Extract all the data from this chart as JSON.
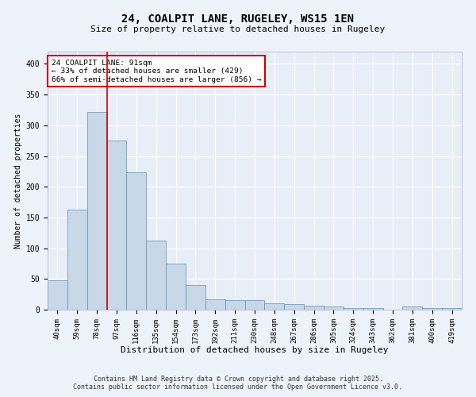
{
  "title": "24, COALPIT LANE, RUGELEY, WS15 1EN",
  "subtitle": "Size of property relative to detached houses in Rugeley",
  "xlabel": "Distribution of detached houses by size in Rugeley",
  "ylabel": "Number of detached properties",
  "footer_line1": "Contains HM Land Registry data © Crown copyright and database right 2025.",
  "footer_line2": "Contains public sector information licensed under the Open Government Licence v3.0.",
  "annotation_line1": "24 COALPIT LANE: 91sqm",
  "annotation_line2": "← 33% of detached houses are smaller (429)",
  "annotation_line3": "66% of semi-detached houses are larger (856) →",
  "bar_labels": [
    "40sqm",
    "59sqm",
    "78sqm",
    "97sqm",
    "116sqm",
    "135sqm",
    "154sqm",
    "173sqm",
    "192sqm",
    "211sqm",
    "230sqm",
    "248sqm",
    "267sqm",
    "286sqm",
    "305sqm",
    "324sqm",
    "343sqm",
    "362sqm",
    "381sqm",
    "400sqm",
    "419sqm"
  ],
  "bar_values": [
    48,
    163,
    322,
    275,
    223,
    113,
    75,
    40,
    17,
    15,
    15,
    10,
    9,
    7,
    5,
    3,
    3,
    0,
    5,
    3,
    2
  ],
  "bar_color": "#c8d8e8",
  "bar_edge_color": "#6090b0",
  "red_line_x": 2.5,
  "background_color": "#eef2fb",
  "plot_bg_color": "#e8eef8",
  "grid_color": "#ffffff",
  "annotation_box_color": "#ffffff",
  "annotation_box_edge": "#cc0000",
  "red_line_color": "#cc0000",
  "ylim": [
    0,
    420
  ],
  "yticks": [
    0,
    50,
    100,
    150,
    200,
    250,
    300,
    350,
    400
  ]
}
